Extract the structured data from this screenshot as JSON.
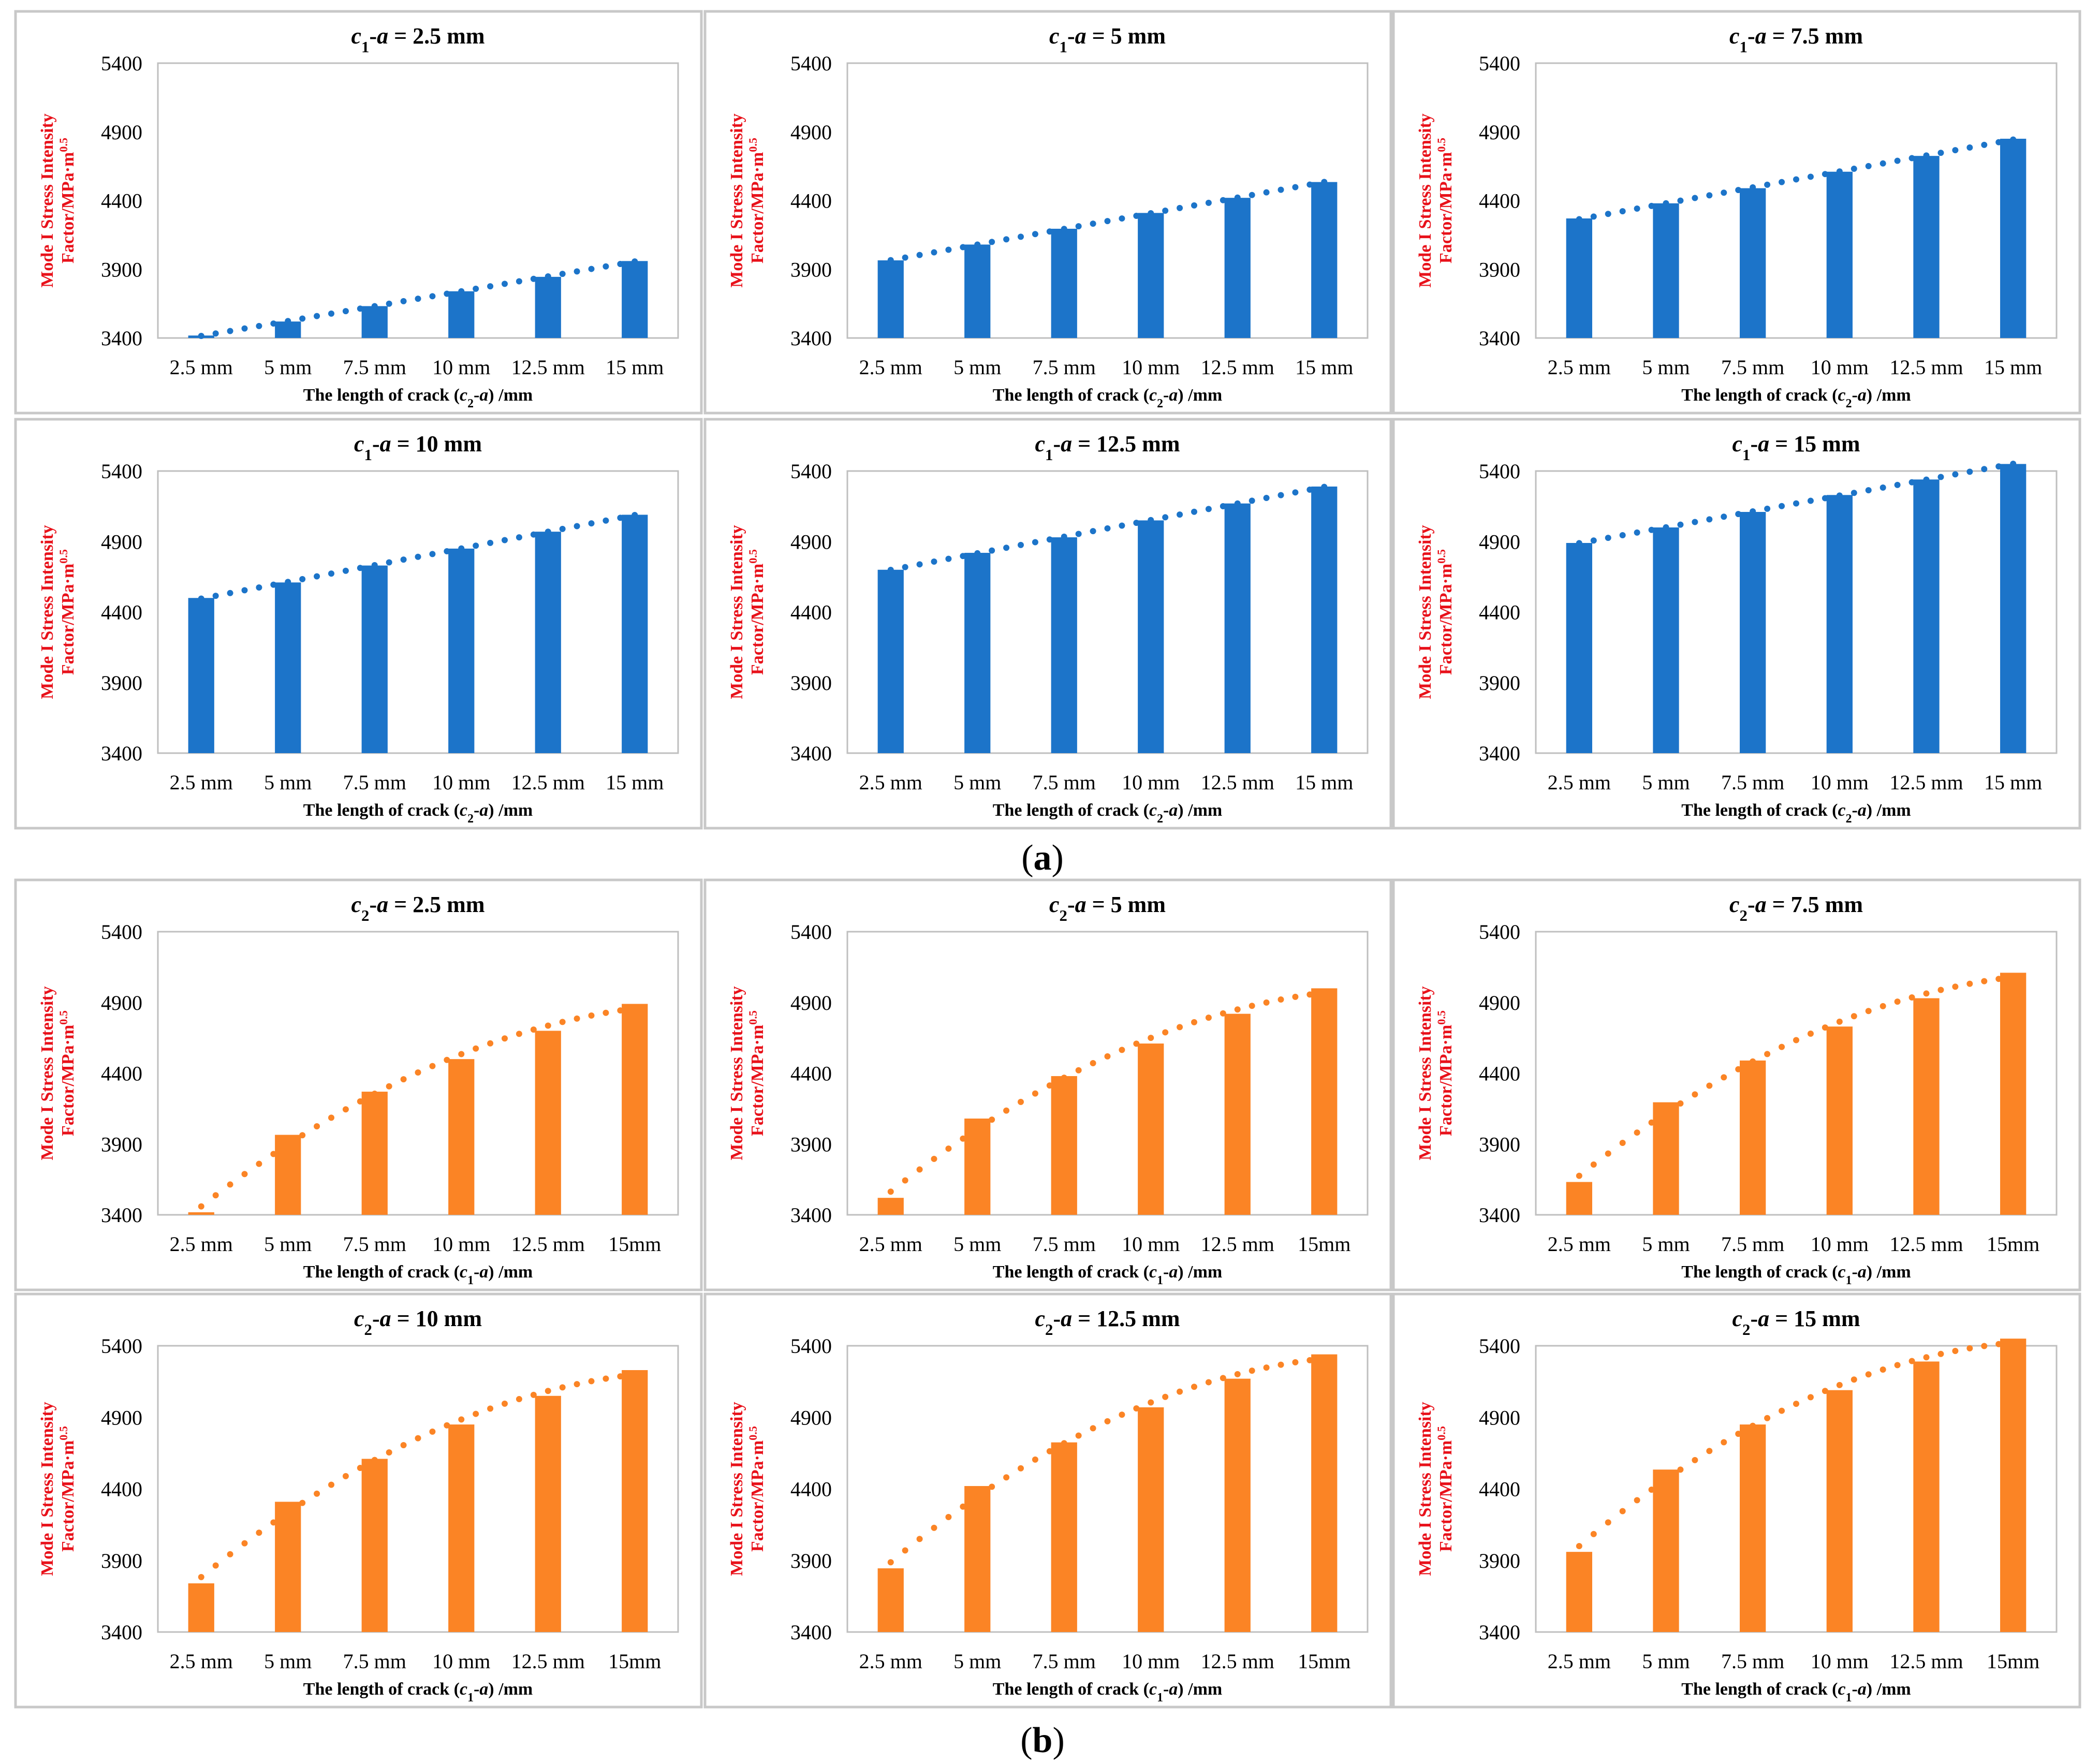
{
  "colors": {
    "blue": "#1c74c9",
    "orange": "#fb8425",
    "ylabel": "#e8111a",
    "frame": "#c8c8c8"
  },
  "ylim": [
    3400,
    5400
  ],
  "yticks": [
    "3400",
    "3900",
    "4400",
    "4900",
    "5400"
  ],
  "groups": [
    {
      "label": "a",
      "series_color": "blue",
      "trend": "linear",
      "xlabel": {
        "pre": "The length of crack (",
        "var": "c",
        "sub": "2",
        "mid": "-",
        "var2": "a",
        "post": ") /mm"
      },
      "ylabel_line1": "Mode I Stress Intensity",
      "ylabel_line2": "Factor/MPa·m",
      "ylabel_sup": "0.5",
      "charts": [
        {
          "title": {
            "var": "c",
            "sub": "1",
            "mid": "-",
            "var2": "a",
            "post": " = 2.5 mm"
          },
          "chart_data": {
            "type": "bar",
            "categories": [
              "2.5 mm",
              "5 mm",
              "7.5 mm",
              "10 mm",
              "12.5 mm",
              "15 mm"
            ],
            "values": [
              3418,
              3520,
              3632,
              3740,
              3845,
              3960
            ],
            "ylim": [
              3400,
              5400
            ]
          }
        },
        {
          "title": {
            "var": "c",
            "sub": "1",
            "mid": "-",
            "var2": "a",
            "post": " = 5 mm"
          },
          "chart_data": {
            "type": "bar",
            "categories": [
              "2.5 mm",
              "5 mm",
              "7.5 mm",
              "10 mm",
              "12.5 mm",
              "15 mm"
            ],
            "values": [
              3965,
              4080,
              4195,
              4310,
              4420,
              4535
            ],
            "ylim": [
              3400,
              5400
            ]
          }
        },
        {
          "title": {
            "var": "c",
            "sub": "1",
            "mid": "-",
            "var2": "a",
            "post": " = 7.5 mm"
          },
          "chart_data": {
            "type": "bar",
            "categories": [
              "2.5 mm",
              "5 mm",
              "7.5 mm",
              "10 mm",
              "12.5 mm",
              "15 mm"
            ],
            "values": [
              4270,
              4380,
              4490,
              4610,
              4725,
              4850
            ],
            "ylim": [
              3400,
              5400
            ]
          }
        },
        {
          "title": {
            "var": "c",
            "sub": "1",
            "mid": "-",
            "var2": "a",
            "post": " = 10 mm"
          },
          "chart_data": {
            "type": "bar",
            "categories": [
              "2.5 mm",
              "5 mm",
              "7.5 mm",
              "10 mm",
              "12.5 mm",
              "15 mm"
            ],
            "values": [
              4500,
              4610,
              4730,
              4850,
              4970,
              5090
            ],
            "ylim": [
              3400,
              5400
            ]
          }
        },
        {
          "title": {
            "var": "c",
            "sub": "1",
            "mid": "-",
            "var2": "a",
            "post": " = 12.5 mm"
          },
          "chart_data": {
            "type": "bar",
            "categories": [
              "2.5 mm",
              "5 mm",
              "7.5 mm",
              "10 mm",
              "12.5 mm",
              "15 mm"
            ],
            "values": [
              4700,
              4820,
              4930,
              5050,
              5170,
              5290
            ],
            "ylim": [
              3400,
              5400
            ]
          }
        },
        {
          "title": {
            "var": "c",
            "sub": "1",
            "mid": "-",
            "var2": "a",
            "post": " = 15 mm"
          },
          "chart_data": {
            "type": "bar",
            "categories": [
              "2.5 mm",
              "5 mm",
              "7.5 mm",
              "10 mm",
              "12.5 mm",
              "15 mm"
            ],
            "values": [
              4890,
              5000,
              5110,
              5230,
              5340,
              5450
            ],
            "ylim": [
              3400,
              5400
            ]
          }
        }
      ]
    },
    {
      "label": "b",
      "series_color": "orange",
      "trend": "quadratic",
      "xlabel": {
        "pre": "The length of crack (",
        "var": "c",
        "sub": "1",
        "mid": "-",
        "var2": "a",
        "post": ") /mm"
      },
      "ylabel_line1": "Mode I Stress Intensity",
      "ylabel_line2": "Factor/MPa·m",
      "ylabel_sup": "0.5",
      "charts": [
        {
          "title": {
            "var": "c",
            "sub": "2",
            "mid": "-",
            "var2": "a",
            "post": " = 2.5 mm"
          },
          "chart_data": {
            "type": "bar",
            "categories": [
              "2.5 mm",
              "5 mm",
              "7.5 mm",
              "10 mm",
              "12.5 mm",
              "15mm"
            ],
            "values": [
              3418,
              3965,
              4270,
              4500,
              4700,
              4890
            ],
            "ylim": [
              3400,
              5400
            ]
          }
        },
        {
          "title": {
            "var": "c",
            "sub": "2",
            "mid": "-",
            "var2": "a",
            "post": " = 5 mm"
          },
          "chart_data": {
            "type": "bar",
            "categories": [
              "2.5 mm",
              "5 mm",
              "7.5 mm",
              "10 mm",
              "12.5 mm",
              "15mm"
            ],
            "values": [
              3520,
              4080,
              4380,
              4610,
              4820,
              5000
            ],
            "ylim": [
              3400,
              5400
            ]
          }
        },
        {
          "title": {
            "var": "c",
            "sub": "2",
            "mid": "-",
            "var2": "a",
            "post": " = 7.5 mm"
          },
          "chart_data": {
            "type": "bar",
            "categories": [
              "2.5 mm",
              "5 mm",
              "7.5 mm",
              "10 mm",
              "12.5 mm",
              "15mm"
            ],
            "values": [
              3632,
              4195,
              4490,
              4730,
              4930,
              5110
            ],
            "ylim": [
              3400,
              5400
            ]
          }
        },
        {
          "title": {
            "var": "c",
            "sub": "2",
            "mid": "-",
            "var2": "a",
            "post": " = 10 mm"
          },
          "chart_data": {
            "type": "bar",
            "categories": [
              "2.5 mm",
              "5 mm",
              "7.5 mm",
              "10 mm",
              "12.5 mm",
              "15mm"
            ],
            "values": [
              3740,
              4310,
              4610,
              4850,
              5050,
              5230
            ],
            "ylim": [
              3400,
              5400
            ]
          }
        },
        {
          "title": {
            "var": "c",
            "sub": "2",
            "mid": "-",
            "var2": "a",
            "post": " = 12.5 mm"
          },
          "chart_data": {
            "type": "bar",
            "categories": [
              "2.5 mm",
              "5 mm",
              "7.5 mm",
              "10 mm",
              "12.5 mm",
              "15mm"
            ],
            "values": [
              3845,
              4420,
              4725,
              4970,
              5170,
              5340
            ],
            "ylim": [
              3400,
              5400
            ]
          }
        },
        {
          "title": {
            "var": "c",
            "sub": "2",
            "mid": "-",
            "var2": "a",
            "post": " = 15 mm"
          },
          "chart_data": {
            "type": "bar",
            "categories": [
              "2.5 mm",
              "5 mm",
              "7.5 mm",
              "10 mm",
              "12.5 mm",
              "15mm"
            ],
            "values": [
              3960,
              4535,
              4850,
              5090,
              5290,
              5450
            ],
            "ylim": [
              3400,
              5400
            ]
          }
        }
      ]
    }
  ]
}
